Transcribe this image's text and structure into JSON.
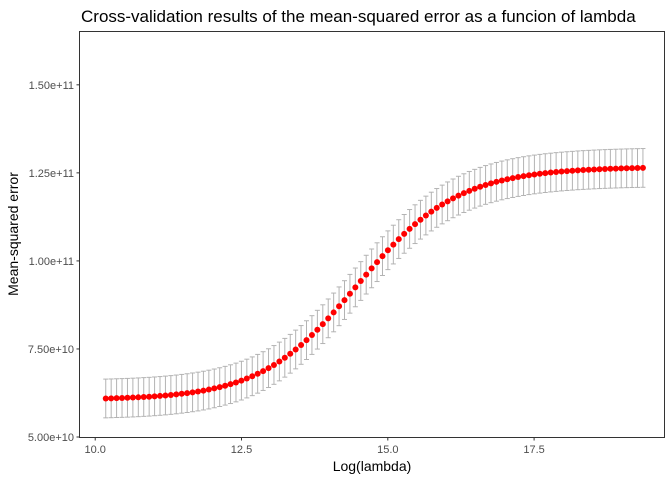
{
  "chart_data": {
    "type": "scatter",
    "title": "Cross-validation results of the mean-squared error as a funcion of lambda",
    "xlabel": "Log(lambda)",
    "ylabel": "Mean-squared error",
    "xlim": [
      9.74,
      19.72
    ],
    "ylim": [
      50000000000.0,
      165000000000.0
    ],
    "x_ticks": [
      10.0,
      12.5,
      15.0,
      17.5
    ],
    "x_tick_labels": [
      "10.0",
      "12.5",
      "15.0",
      "17.5"
    ],
    "y_ticks": [
      50000000000.0,
      75000000000.0,
      100000000000.0,
      125000000000.0,
      150000000000.0
    ],
    "y_tick_labels": [
      "5.00e+10",
      "7.50e+10",
      "1.00e+11",
      "1.25e+11",
      "1.50e+11"
    ],
    "grid": false,
    "legend": "none",
    "point_color": "#ff0000",
    "errorbar_color": "#b3b3b3",
    "series": [
      {
        "x_start": 10.18,
        "x_end": 19.36,
        "n_points": 100,
        "mean": [
          60940000000,
          60980000000,
          61030000000,
          61080000000,
          61140000000,
          61200000000,
          61270000000,
          61360000000,
          61440000000,
          61550000000,
          61660000000,
          61790000000,
          61930000000,
          62090000000,
          62270000000,
          62460000000,
          62680000000,
          62910000000,
          63180000000,
          63470000000,
          63800000000,
          64160000000,
          64560000000,
          65000000000,
          65480000000,
          66010000000,
          66600000000,
          67240000000,
          67950000000,
          68720000000,
          69550000000,
          70460000000,
          71440000000,
          72500000000,
          73630000000,
          74850000000,
          76140000000,
          77510000000,
          78950000000,
          80470000000,
          82040000000,
          83690000000,
          85370000000,
          87110000000,
          88880000000,
          90670000000,
          92480000000,
          94290000000,
          96100000000,
          97880000000,
          99640000000,
          101360000000,
          103030000000,
          104640000000,
          106200000000,
          107680000000,
          109090000000,
          110430000000,
          111700000000,
          112890000000,
          114010000000,
          115050000000,
          116020000000,
          116920000000,
          117760000000,
          118530000000,
          119240000000,
          119900000000,
          120500000000,
          121060000000,
          121570000000,
          122030000000,
          122460000000,
          122850000000,
          123200000000,
          123520000000,
          123820000000,
          124080000000,
          124330000000,
          124550000000,
          124750000000,
          124930000000,
          125090000000,
          125240000000,
          125380000000,
          125500000000,
          125610000000,
          125720000000,
          125810000000,
          125890000000,
          125970000000,
          126040000000,
          126100000000,
          126160000000,
          126210000000,
          126260000000,
          126300000000,
          126340000000,
          126370000000,
          126410000000
        ],
        "error_half_width": 5500000000
      }
    ]
  }
}
